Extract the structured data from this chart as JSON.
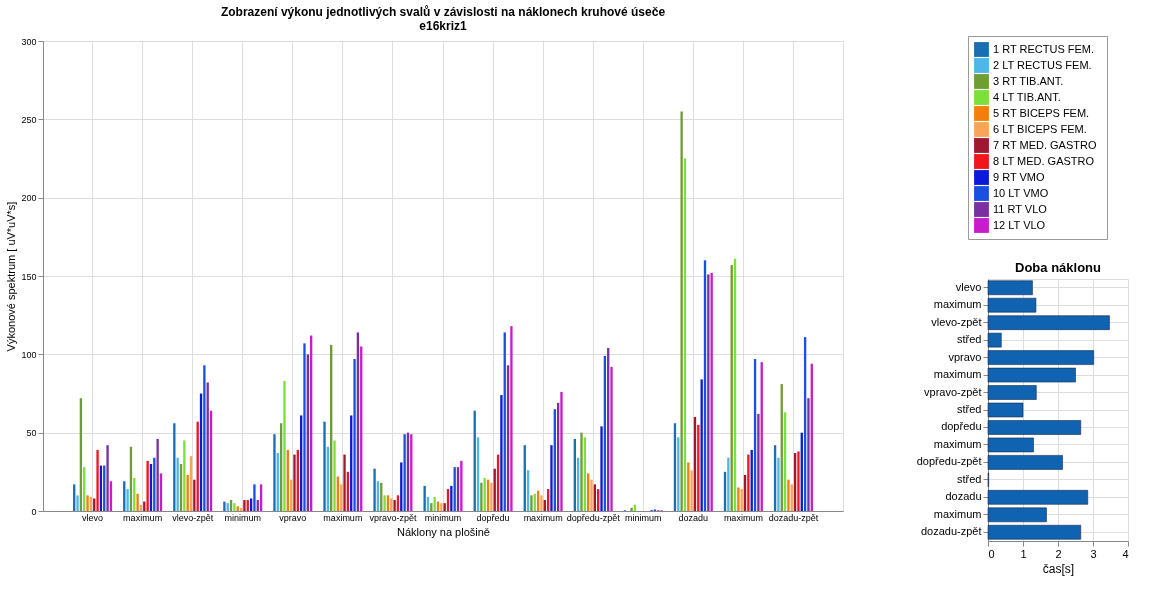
{
  "chart_data": [
    {
      "type": "bar",
      "title": "Zobrazení výkonu jednotlivých svalů v závislosti na náklonech kruhové úseče",
      "subtitle": "e16kriz1",
      "xlabel": "Náklony na plošině",
      "ylabel": "Výkonové spektrum [ uV*uV*s]",
      "categories": [
        "vlevo",
        "maximum",
        "vlevo-zpět",
        "minimum",
        "vpravo",
        "maximum",
        "vpravo-zpět",
        "minimum",
        "dopředu",
        "maximum",
        "dopředu-zpět",
        "minimum",
        "dozadu",
        "maximum",
        "dozadu-zpět"
      ],
      "series": [
        {
          "name": "1  RT RECTUS FEM.",
          "color": "#1a6fb0",
          "values": [
            17,
            19,
            56,
            6,
            49,
            57,
            27,
            16,
            64,
            42,
            46,
            0.5,
            56,
            25,
            42
          ]
        },
        {
          "name": "2  LT RECTUS FEM.",
          "color": "#4fb6e8",
          "values": [
            10,
            14,
            34,
            5,
            37,
            41,
            19,
            9,
            47,
            26,
            34,
            0,
            47,
            34,
            34
          ]
        },
        {
          "name": "3  RT TIB.ANT.",
          "color": "#6e9d33",
          "values": [
            72,
            41,
            30,
            7,
            56,
            106,
            18,
            5,
            18,
            10,
            50,
            2,
            255,
            157,
            81
          ]
        },
        {
          "name": "4  LT  TIB.ANT.",
          "color": "#7be03a",
          "values": [
            28,
            21,
            45,
            5,
            83,
            45,
            10,
            9,
            21,
            11,
            47,
            4,
            225,
            161,
            63
          ]
        },
        {
          "name": "5  RT BICEPS FEM.",
          "color": "#f47e0c",
          "values": [
            10,
            11,
            23,
            3,
            39,
            22,
            10,
            6,
            20,
            13,
            24,
            0,
            31,
            15,
            20
          ]
        },
        {
          "name": "6  LT  BICEPS FEM.",
          "color": "#f8a55a",
          "values": [
            9,
            4,
            35,
            2,
            20,
            17,
            8,
            5,
            18,
            10,
            20,
            0,
            26,
            14,
            17
          ]
        },
        {
          "name": "7  RT MED. GASTRO",
          "color": "#a01830",
          "values": [
            8,
            6,
            20,
            7,
            36,
            36,
            7,
            5,
            27,
            7,
            17,
            0,
            60,
            23,
            37
          ]
        },
        {
          "name": "8  LT  MED. GASTRO",
          "color": "#f0161a",
          "values": [
            39,
            32,
            57,
            7,
            39,
            25,
            10,
            14,
            36,
            14,
            14,
            0,
            55,
            36,
            38
          ]
        },
        {
          "name": "9  RT VMO",
          "color": "#0a1ad8",
          "values": [
            29,
            30,
            75,
            8,
            61,
            61,
            31,
            16,
            74,
            42,
            54,
            0.5,
            84,
            39,
            50
          ]
        },
        {
          "name": "10  LT VMO",
          "color": "#1a50e0",
          "values": [
            29,
            34,
            93,
            17,
            107,
            97,
            49,
            28,
            114,
            65,
            99,
            1,
            160,
            97,
            111
          ]
        },
        {
          "name": "11  RT VLO",
          "color": "#7a30a0",
          "values": [
            42,
            46,
            82,
            7,
            100,
            114,
            50,
            28,
            93,
            69,
            104,
            0.5,
            151,
            62,
            72
          ]
        },
        {
          "name": "12  LT VLO",
          "color": "#c81ccc",
          "values": [
            19,
            24,
            64,
            17,
            112,
            105,
            49,
            32,
            118,
            76,
            92,
            0.5,
            152,
            95,
            94
          ]
        }
      ],
      "ylim": [
        0,
        300
      ],
      "yticks": [
        0,
        50,
        100,
        150,
        200,
        250,
        300
      ],
      "grid": true,
      "legend": "top right"
    },
    {
      "type": "bar",
      "orientation": "horizontal",
      "title": "Doba náklonu",
      "xlabel": "čas[s]",
      "categories": [
        "vlevo",
        "maximum",
        "vlevo-zpět",
        "střed",
        "vpravo",
        "maximum",
        "vpravo-zpět",
        "střed",
        "dopředu",
        "maximum",
        "dopředu-zpět",
        "střed",
        "dozadu",
        "maximum",
        "dozadu-zpět"
      ],
      "values": [
        1.27,
        1.37,
        3.47,
        0.38,
        3.02,
        2.5,
        1.38,
        1.0,
        2.65,
        1.3,
        2.13,
        0.02,
        2.85,
        1.67,
        2.65
      ],
      "color": "#0f63b0",
      "xlim": [
        0,
        4
      ],
      "xticks": [
        0,
        1,
        2,
        3,
        4
      ],
      "grid": true
    }
  ]
}
